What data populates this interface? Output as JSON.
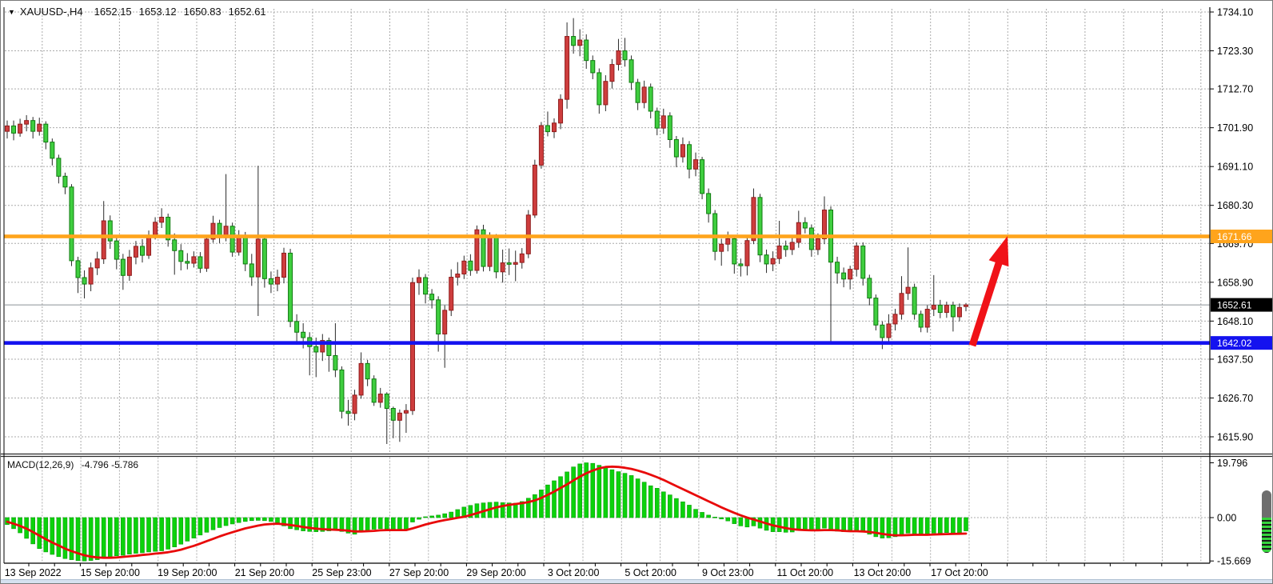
{
  "window": {
    "title_symbol": "XAUUSD-,H4",
    "ohlc": {
      "open": "1652.15",
      "high": "1653.12",
      "low": "1650.83",
      "close": "1652.61"
    }
  },
  "time_axis": {
    "labels": [
      {
        "i": 4,
        "text": "13 Sep 2022"
      },
      {
        "i": 16,
        "text": "15 Sep 20:00"
      },
      {
        "i": 28,
        "text": "19 Sep 20:00"
      },
      {
        "i": 40,
        "text": "21 Sep 20:00"
      },
      {
        "i": 52,
        "text": "25 Sep 23:00"
      },
      {
        "i": 64,
        "text": "27 Sep 20:00"
      },
      {
        "i": 76,
        "text": "29 Sep 20:00"
      },
      {
        "i": 88,
        "text": "3 Oct 20:00"
      },
      {
        "i": 100,
        "text": "5 Oct 20:00"
      },
      {
        "i": 112,
        "text": "9 Oct 23:00"
      },
      {
        "i": 124,
        "text": "11 Oct 20:00"
      },
      {
        "i": 136,
        "text": "13 Oct 20:00"
      },
      {
        "i": 148,
        "text": "17 Oct 20:00"
      }
    ]
  },
  "macd_panel": {
    "label": "MACD(12,26,9)",
    "values_text": "-4.796 -5.786",
    "ticks": [
      "19.796",
      "0.00",
      "-15.669"
    ]
  },
  "chart_data": {
    "type": "candlestick",
    "symbol": "XAUUSD-",
    "timeframe": "H4",
    "colors": {
      "bull": "#CE3D3D",
      "bull_border": "#8F1C1C",
      "bear": "#3FCE3F",
      "bear_border": "#0F7A0F",
      "wick": "#2a2a2a",
      "grid": "#ABABAB",
      "macd_hist": "#0BD20B",
      "macd_hist_border": "#0A9E0A",
      "macd_signal": "#E80A0A",
      "arrow": "#F01218",
      "current_price_line": "#8b9198"
    },
    "y_ticks": [
      1734.1,
      1723.3,
      1712.7,
      1701.9,
      1691.1,
      1680.3,
      1669.7,
      1658.9,
      1648.1,
      1637.5,
      1626.7,
      1615.9
    ],
    "h_lines": [
      {
        "price": 1671.66,
        "label": "1671.66",
        "role": "resistance",
        "color": "#FFA41C"
      },
      {
        "price": 1642.02,
        "label": "1642.02",
        "role": "support",
        "color": "#1412EF"
      }
    ],
    "current_price": 1652.61,
    "current_price_label": "1652.61",
    "annotations": {
      "arrow": {
        "tail": [
          1215,
          431
        ],
        "tip": [
          1259,
          294
        ]
      }
    },
    "candles": [
      [
        1700.9,
        1703.9,
        1698.9,
        1702.4
      ],
      [
        1702.4,
        1703.9,
        1698.4,
        1700.4
      ],
      [
        1700.4,
        1704.4,
        1699.4,
        1702.9
      ],
      [
        1702.9,
        1705.4,
        1700.9,
        1703.9
      ],
      [
        1703.9,
        1704.9,
        1698.9,
        1700.9
      ],
      [
        1700.9,
        1704.7,
        1699.7,
        1702.9
      ],
      [
        1702.9,
        1703.7,
        1695.9,
        1697.9
      ],
      [
        1697.9,
        1698.9,
        1691.4,
        1693.4
      ],
      [
        1693.4,
        1694.4,
        1686.4,
        1688.4
      ],
      [
        1688.4,
        1689.4,
        1683.4,
        1685.4
      ],
      [
        1685.4,
        1686.2,
        1663.4,
        1664.9
      ],
      [
        1664.9,
        1666,
        1655.9,
        1660.2
      ],
      [
        1660.2,
        1662.2,
        1654.4,
        1658.4
      ],
      [
        1658.4,
        1664.4,
        1656.4,
        1662.9
      ],
      [
        1662.9,
        1667.4,
        1660.9,
        1665.4
      ],
      [
        1665.4,
        1681.5,
        1664,
        1676
      ],
      [
        1676,
        1677.5,
        1668.2,
        1670.4
      ],
      [
        1670.4,
        1671.6,
        1662.5,
        1665.3
      ],
      [
        1665.3,
        1666.8,
        1656.8,
        1660.8
      ],
      [
        1660.8,
        1667.9,
        1659.3,
        1665.9
      ],
      [
        1665.9,
        1670.4,
        1663.9,
        1668.9
      ],
      [
        1668.9,
        1670.9,
        1664.4,
        1666.4
      ],
      [
        1666.4,
        1673.3,
        1665.4,
        1671.8
      ],
      [
        1671.8,
        1677,
        1670.8,
        1675.6
      ],
      [
        1675.6,
        1679.5,
        1674,
        1677
      ],
      [
        1677,
        1678,
        1668.8,
        1670.7
      ],
      [
        1670.7,
        1672.5,
        1661,
        1667.7
      ],
      [
        1667.7,
        1669.5,
        1662.2,
        1664.7
      ],
      [
        1664.7,
        1667,
        1662.5,
        1664.2
      ],
      [
        1664.2,
        1667.5,
        1663,
        1666
      ],
      [
        1666,
        1667.3,
        1661.5,
        1662.8
      ],
      [
        1662.8,
        1671.9,
        1661.8,
        1670.9
      ],
      [
        1670.9,
        1677.4,
        1669.9,
        1675.3
      ],
      [
        1675.3,
        1676.3,
        1669.8,
        1671.3
      ],
      [
        1671.3,
        1689,
        1670.3,
        1674.5
      ],
      [
        1674.5,
        1675.5,
        1666,
        1667.3
      ],
      [
        1667.3,
        1673.4,
        1666.3,
        1671.9
      ],
      [
        1671.9,
        1672.9,
        1662,
        1664
      ],
      [
        1664,
        1666.8,
        1657.9,
        1660.4
      ],
      [
        1660.4,
        1691.3,
        1649.5,
        1670.9
      ],
      [
        1670.9,
        1671.9,
        1657.4,
        1659.9
      ],
      [
        1659.9,
        1661.9,
        1655.9,
        1658.4
      ],
      [
        1658.4,
        1662.4,
        1656.4,
        1660.3
      ],
      [
        1660.3,
        1668.5,
        1658.6,
        1667
      ],
      [
        1667,
        1668.2,
        1646.4,
        1648
      ],
      [
        1648,
        1650,
        1641.5,
        1645
      ],
      [
        1645,
        1647.5,
        1640.5,
        1643.5
      ],
      [
        1643.5,
        1645,
        1633,
        1641
      ],
      [
        1641,
        1643.5,
        1632.5,
        1639.5
      ],
      [
        1639.5,
        1644.5,
        1637,
        1642.7
      ],
      [
        1642.7,
        1643.5,
        1634,
        1638.5
      ],
      [
        1638.5,
        1647.5,
        1632.5,
        1634.5
      ],
      [
        1634.5,
        1635.5,
        1621,
        1623
      ],
      [
        1623,
        1626.2,
        1619,
        1622.4
      ],
      [
        1622.4,
        1629,
        1620.5,
        1627.5
      ],
      [
        1627.5,
        1639.4,
        1626.5,
        1636.3
      ],
      [
        1636.3,
        1637.3,
        1630,
        1632
      ],
      [
        1632,
        1633,
        1624.5,
        1625.5
      ],
      [
        1625.5,
        1629.5,
        1624,
        1627.8
      ],
      [
        1627.8,
        1628.3,
        1613.9,
        1623.8
      ],
      [
        1623.8,
        1624.3,
        1615.5,
        1620.5
      ],
      [
        1620.5,
        1623.5,
        1614.5,
        1622.5
      ],
      [
        1622.5,
        1625,
        1617,
        1623.2
      ],
      [
        1623.2,
        1660.2,
        1622,
        1658.8
      ],
      [
        1658.8,
        1662.5,
        1655.4,
        1660.2
      ],
      [
        1660.2,
        1661.2,
        1653,
        1655.6
      ],
      [
        1655.6,
        1657,
        1651.6,
        1654
      ],
      [
        1654,
        1655,
        1639.6,
        1644.5
      ],
      [
        1644.5,
        1652.5,
        1635.1,
        1651.1
      ],
      [
        1651.1,
        1662.5,
        1649.5,
        1660.3
      ],
      [
        1660.3,
        1664.5,
        1658,
        1661.2
      ],
      [
        1661.2,
        1666.3,
        1659.8,
        1664.8
      ],
      [
        1664.8,
        1666.7,
        1660.7,
        1662.2
      ],
      [
        1662.2,
        1674.7,
        1661.3,
        1673.5
      ],
      [
        1673.5,
        1674.9,
        1661.9,
        1663.3
      ],
      [
        1663.3,
        1672.8,
        1662,
        1671.5
      ],
      [
        1671.5,
        1672.3,
        1660,
        1661.8
      ],
      [
        1661.8,
        1668,
        1658.8,
        1664.3
      ],
      [
        1664.3,
        1668.3,
        1660.9,
        1663.9
      ],
      [
        1663.9,
        1667.7,
        1659.2,
        1664.4
      ],
      [
        1664.4,
        1668.4,
        1662.7,
        1666.8
      ],
      [
        1666.8,
        1679,
        1665.6,
        1677.6
      ],
      [
        1677.6,
        1693,
        1676.8,
        1691.5
      ],
      [
        1691.5,
        1703.5,
        1690.5,
        1702.5
      ],
      [
        1702.5,
        1706.4,
        1699.5,
        1700.8
      ],
      [
        1700.8,
        1704.5,
        1699,
        1703.2
      ],
      [
        1703.2,
        1711.2,
        1701.5,
        1709.8
      ],
      [
        1709.8,
        1731.2,
        1707.2,
        1727.3
      ],
      [
        1727.3,
        1732.4,
        1722.5,
        1724.8
      ],
      [
        1724.8,
        1729.3,
        1721.8,
        1726.3
      ],
      [
        1726.3,
        1727.9,
        1718.3,
        1720.6
      ],
      [
        1720.6,
        1722,
        1715.4,
        1717.2
      ],
      [
        1717.2,
        1718.4,
        1705.8,
        1708.3
      ],
      [
        1708.3,
        1716.5,
        1706.5,
        1714.8
      ],
      [
        1714.8,
        1721,
        1712.8,
        1719.5
      ],
      [
        1719.5,
        1726.6,
        1717.8,
        1723.3
      ],
      [
        1723.3,
        1726.9,
        1718.9,
        1720.8
      ],
      [
        1720.8,
        1722,
        1712.4,
        1714.5
      ],
      [
        1714.5,
        1715.5,
        1706.8,
        1708.9
      ],
      [
        1708.9,
        1715,
        1707.3,
        1713.2
      ],
      [
        1713.2,
        1714.2,
        1704.5,
        1706.5
      ],
      [
        1706.5,
        1707.5,
        1699.8,
        1701.8
      ],
      [
        1701.8,
        1707.2,
        1700.2,
        1705.2
      ],
      [
        1705.2,
        1706.2,
        1696.3,
        1698.6
      ],
      [
        1698.6,
        1699.6,
        1690.9,
        1693.8
      ],
      [
        1693.8,
        1699.2,
        1692.2,
        1697.2
      ],
      [
        1697.2,
        1698.2,
        1687.8,
        1690.4
      ],
      [
        1690.4,
        1695,
        1688.4,
        1693
      ],
      [
        1693,
        1693.8,
        1682,
        1683.6
      ],
      [
        1683.6,
        1685,
        1675.5,
        1678
      ],
      [
        1678,
        1679,
        1665,
        1667.5
      ],
      [
        1667.5,
        1671,
        1663.5,
        1669.5
      ],
      [
        1669.5,
        1673,
        1667.5,
        1671
      ],
      [
        1671,
        1672,
        1661.3,
        1664
      ],
      [
        1664,
        1665.5,
        1660.5,
        1663.5
      ],
      [
        1663.5,
        1672,
        1660.8,
        1670.5
      ],
      [
        1670.5,
        1685,
        1669.5,
        1682.5
      ],
      [
        1682.5,
        1683.5,
        1664.5,
        1666.5
      ],
      [
        1666.5,
        1668,
        1661.5,
        1664
      ],
      [
        1664,
        1667.5,
        1662,
        1665.5
      ],
      [
        1665.5,
        1676,
        1664,
        1669
      ],
      [
        1669,
        1670.5,
        1666,
        1668
      ],
      [
        1668,
        1671.5,
        1666.5,
        1670
      ],
      [
        1670,
        1678.8,
        1668.5,
        1675.5
      ],
      [
        1675.5,
        1677,
        1672.5,
        1674
      ],
      [
        1674,
        1675,
        1666,
        1668
      ],
      [
        1668,
        1672.5,
        1666.5,
        1671
      ],
      [
        1671,
        1682.8,
        1669.5,
        1679
      ],
      [
        1679,
        1680,
        1642.1,
        1664.5
      ],
      [
        1664.5,
        1666,
        1658.5,
        1661.5
      ],
      [
        1661.5,
        1663,
        1657.5,
        1659.8
      ],
      [
        1659.8,
        1663.5,
        1656.9,
        1662.5
      ],
      [
        1662.5,
        1670,
        1660.5,
        1669
      ],
      [
        1669,
        1670,
        1658,
        1660
      ],
      [
        1660,
        1661,
        1652.5,
        1654.5
      ],
      [
        1654.5,
        1655.5,
        1645.5,
        1647
      ],
      [
        1647,
        1648,
        1640.3,
        1643.5
      ],
      [
        1643.5,
        1650,
        1641.8,
        1647.3
      ],
      [
        1647.3,
        1651.5,
        1645.5,
        1650
      ],
      [
        1650,
        1660.6,
        1648.5,
        1655.8
      ],
      [
        1655.8,
        1668.6,
        1654,
        1657.5
      ],
      [
        1657.5,
        1658.5,
        1648.5,
        1650
      ],
      [
        1650,
        1651,
        1645,
        1646.4
      ],
      [
        1646.4,
        1652.5,
        1644.9,
        1651.4
      ],
      [
        1651.4,
        1660.9,
        1649.5,
        1652.5
      ],
      [
        1652.5,
        1654,
        1648.9,
        1650.5
      ],
      [
        1650.5,
        1653.5,
        1649,
        1652.5
      ],
      [
        1652.5,
        1653.5,
        1645.2,
        1649.3
      ],
      [
        1649.3,
        1653,
        1648,
        1651.9
      ],
      [
        1652.15,
        1653.12,
        1650.83,
        1652.61
      ]
    ],
    "macd": {
      "ticks": [
        19.796,
        0,
        -15.669
      ],
      "histogram": [
        -2.5,
        -4,
        -5.5,
        -7.5,
        -9.5,
        -11.2,
        -12.4,
        -13.3,
        -14.1,
        -14.8,
        -15.2,
        -15.55,
        -15.669,
        -15.5,
        -15.2,
        -14.8,
        -14.2,
        -13.8,
        -13.6,
        -13.2,
        -12.9,
        -12.7,
        -12.4,
        -12.2,
        -12,
        -11.4,
        -10.6,
        -9.6,
        -8.5,
        -7.4,
        -6.3,
        -5.3,
        -4.4,
        -3.6,
        -2.9,
        -2.3,
        -1.8,
        -1.4,
        -1.1,
        -1,
        -1.1,
        -1.4,
        -1.9,
        -3,
        -4,
        -4.4,
        -4.8,
        -5,
        -5.1,
        -5,
        -4.8,
        -4.5,
        -5,
        -5.6,
        -6,
        -5.2,
        -4.6,
        -4.2,
        -4,
        -4.1,
        -4.3,
        -4.6,
        -4.4,
        -1.6,
        -0.6,
        0.3,
        0.6,
        0.9,
        1.4,
        2,
        2.9,
        3.8,
        4.4,
        5,
        5.3,
        5.5,
        5.6,
        5.4,
        5.3,
        5.2,
        5.8,
        7,
        8.3,
        10,
        11.8,
        13.3,
        14.8,
        16.5,
        18.3,
        19.4,
        19.796,
        19.6,
        18.9,
        18,
        17.3,
        16.6,
        16,
        15.2,
        14,
        12.8,
        11.5,
        10.6,
        9.3,
        8.2,
        6.9,
        5.7,
        4.5,
        3,
        1.9,
        0.9,
        0.2,
        -0.5,
        -1.2,
        -2.2,
        -3,
        -3.4,
        -3,
        -3.8,
        -4.6,
        -5.1,
        -5.1,
        -5.3,
        -5.2,
        -4.6,
        -4.4,
        -4.6,
        -4.5,
        -3.8,
        -4.4,
        -4.9,
        -5.1,
        -5.1,
        -4.6,
        -5.1,
        -6,
        -6.9,
        -7.4,
        -7.3,
        -6.9,
        -6.1,
        -5.6,
        -5.9,
        -6.2,
        -6,
        -5.6,
        -5.6,
        -5.4,
        -5.6,
        -5.5,
        -4.796
      ],
      "signal": [
        -1.5,
        -2.2,
        -3,
        -4,
        -5.2,
        -6.5,
        -7.8,
        -9,
        -10.1,
        -11.2,
        -12.1,
        -12.9,
        -13.6,
        -14.1,
        -14.4,
        -14.5,
        -14.5,
        -14.4,
        -14.2,
        -14,
        -13.8,
        -13.5,
        -13.3,
        -13,
        -12.8,
        -12.5,
        -12.1,
        -11.6,
        -10.9,
        -10.2,
        -9.4,
        -8.5,
        -7.7,
        -6.8,
        -6,
        -5.3,
        -4.6,
        -3.9,
        -3.4,
        -2.9,
        -2.5,
        -2.3,
        -2.2,
        -2.4,
        -2.7,
        -3,
        -3.4,
        -3.7,
        -4,
        -4.2,
        -4.3,
        -4.4,
        -4.5,
        -4.7,
        -5,
        -5,
        -4.9,
        -4.8,
        -4.6,
        -4.5,
        -4.5,
        -4.5,
        -4.5,
        -3.9,
        -3.2,
        -2.5,
        -1.9,
        -1.4,
        -0.9,
        -0.5,
        -0.1,
        0.3,
        0.9,
        1.6,
        2.3,
        3,
        3.7,
        4.2,
        4.6,
        4.9,
        5.2,
        5.6,
        6.2,
        7.1,
        8.2,
        9.4,
        10.7,
        12,
        13.4,
        14.8,
        16,
        17,
        17.8,
        18.3,
        18.4,
        18.3,
        18,
        17.6,
        17,
        16.3,
        15.5,
        14.6,
        13.6,
        12.5,
        11.4,
        10.3,
        9.2,
        8.1,
        7,
        5.9,
        4.8,
        3.7,
        2.7,
        1.7,
        0.8,
        0,
        -0.7,
        -1.4,
        -2.1,
        -2.8,
        -3.3,
        -3.8,
        -4.2,
        -4.4,
        -4.5,
        -4.6,
        -4.6,
        -4.5,
        -4.5,
        -4.6,
        -4.8,
        -4.9,
        -4.9,
        -5,
        -5.2,
        -5.5,
        -5.9,
        -6.2,
        -6.4,
        -6.4,
        -6.3,
        -6.2,
        -6.2,
        -6.2,
        -6.1,
        -6,
        -5.95,
        -5.9,
        -5.85,
        -5.786
      ]
    }
  }
}
